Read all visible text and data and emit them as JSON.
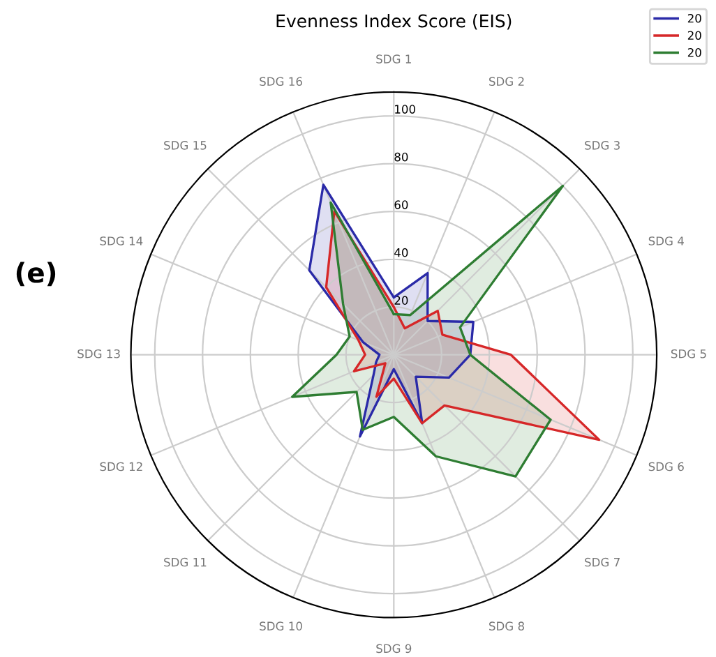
{
  "chart_data": {
    "type": "radar",
    "title": "Evenness Index Score (EIS)",
    "categories": [
      "SDG 1",
      "SDG 2",
      "SDG 3",
      "SDG 4",
      "SDG 5",
      "SDG 6",
      "SDG 7",
      "SDG 8",
      "SDG 9",
      "SDG 10",
      "SDG 11",
      "SDG 12",
      "SDG 13",
      "SDG 14",
      "SDG 15",
      "SDG 16"
    ],
    "series": [
      {
        "name": "20",
        "color": "#2a2aa8",
        "values": [
          24,
          37,
          20,
          36,
          32,
          25,
          13,
          31,
          6,
          37,
          12,
          8,
          6,
          14,
          50,
          77
        ]
      },
      {
        "name": "20",
        "color": "#d62728",
        "values": [
          20,
          12,
          26,
          22,
          49,
          93,
          30,
          31,
          10,
          19,
          5,
          18,
          12,
          16,
          40,
          65
        ]
      },
      {
        "name": "20",
        "color": "#2e7d32",
        "values": [
          17,
          18,
          100,
          30,
          32,
          71,
          72,
          46,
          26,
          34,
          22,
          46,
          24,
          20,
          30,
          69
        ]
      }
    ],
    "ylim": [
      0,
      110
    ],
    "yticks": [
      20,
      40,
      60,
      80,
      100
    ],
    "grid": true,
    "legend": "top right",
    "annotations": [
      "(e)"
    ]
  }
}
